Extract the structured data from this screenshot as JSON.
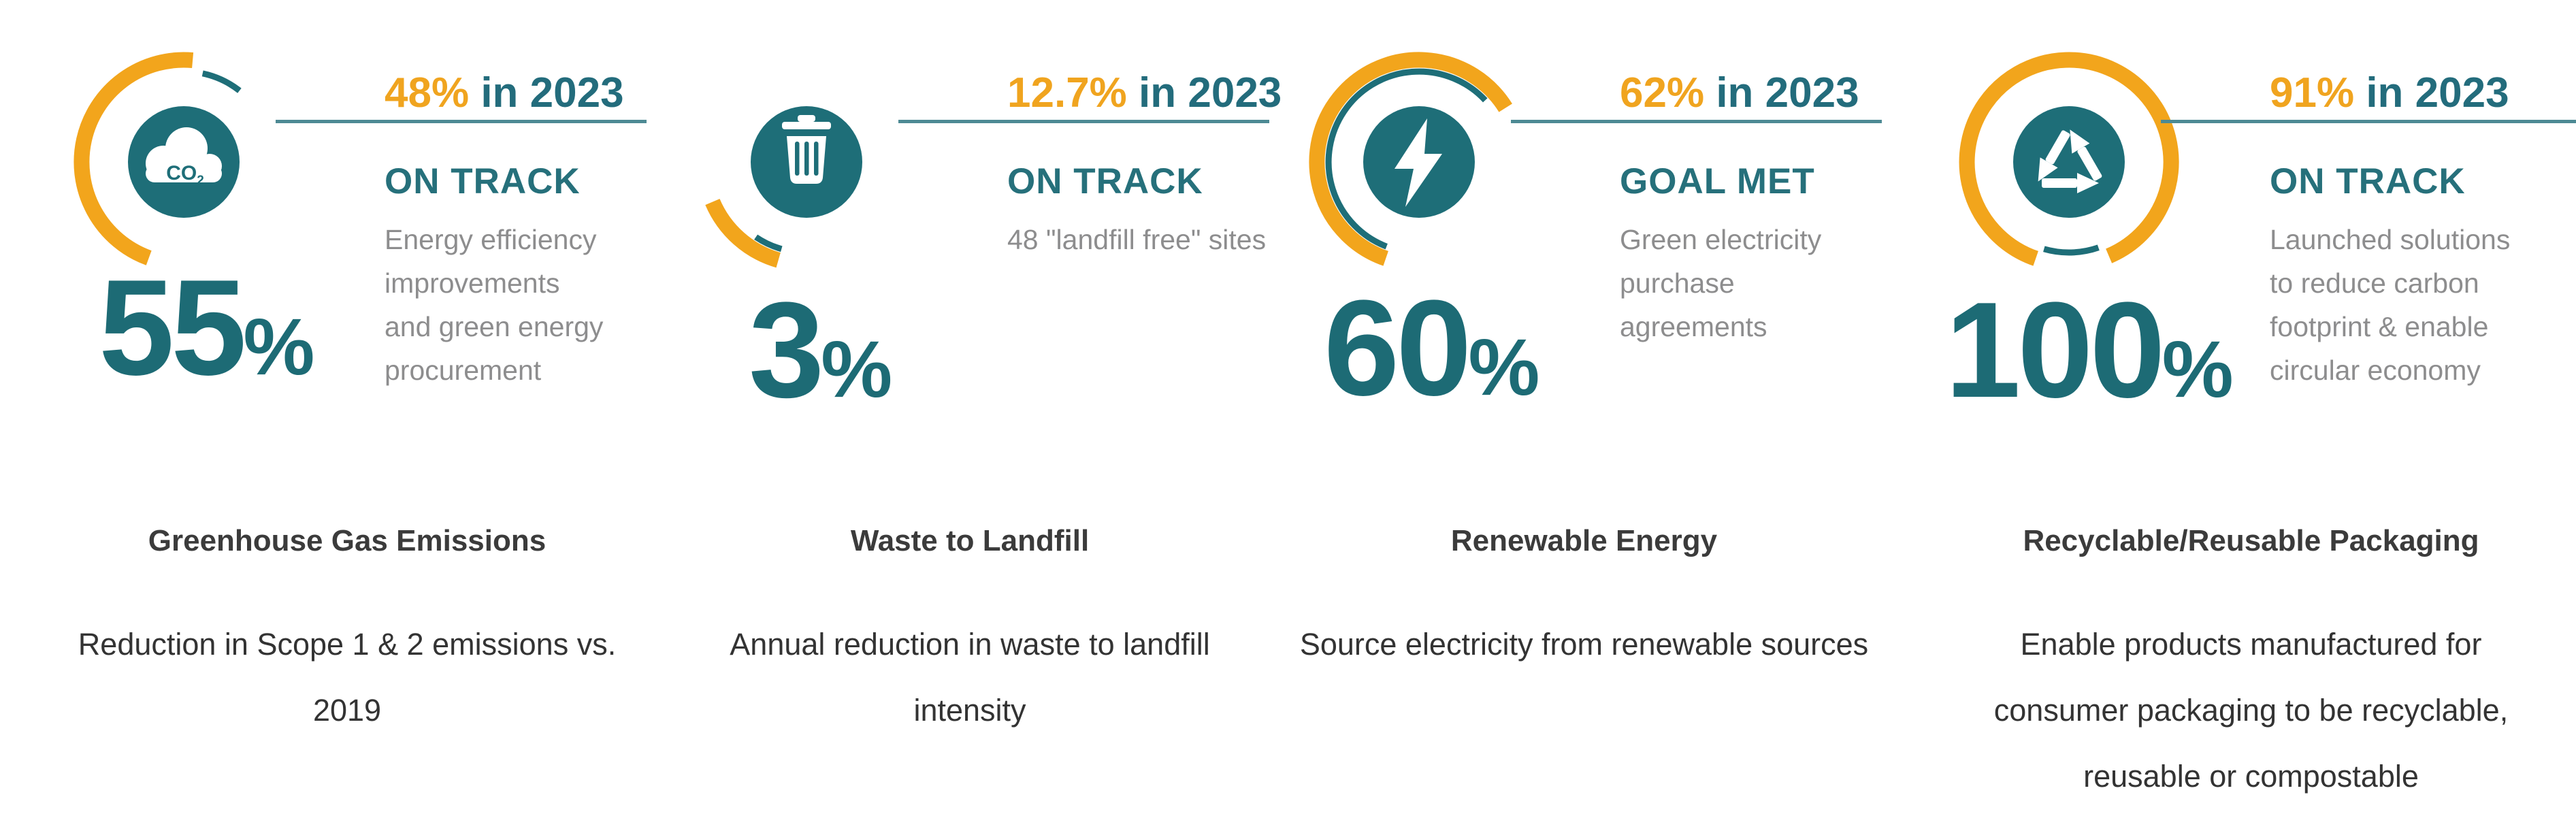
{
  "theme": {
    "background": "#ffffff",
    "accent_orange": "#f2a51c",
    "teal_dark": "#1e6e78",
    "big_number_teal": "#1d6b75",
    "heading_orange": "#f0a41f",
    "heading_teal": "#236c7c",
    "status_teal": "#26707b",
    "divider_teal_gray": "#4d8a94",
    "detail_gray": "#8d8d8e",
    "title_color": "#3b3b3b",
    "description_color": "#333333"
  },
  "icons": {
    "co2_main": "CO",
    "co2_sub": "2"
  },
  "cards": [
    {
      "icon": "co2-cloud-icon",
      "goal_number": "55",
      "goal_suffix": "%",
      "current_value": "48%",
      "current_rest": " in 2023",
      "status": "ON TRACK",
      "detail": "Energy efficiency\nimprovements\nand green energy\nprocurement",
      "title": "Greenhouse Gas Emissions",
      "description": "Reduction in Scope 1 & 2 emissions vs.\n2019",
      "gauge_arcs": {
        "orange_start_deg": 200,
        "orange_end_deg": 365,
        "teal_start_deg": 12,
        "teal_end_deg": 38
      }
    },
    {
      "icon": "trash-icon",
      "goal_number": "3",
      "goal_suffix": "%",
      "current_value": "12.7%",
      "current_rest": " in 2023",
      "status": "ON TRACK",
      "detail": "48 \"landfill free\" sites",
      "title": "Waste to Landfill",
      "description": "Annual reduction in waste to landfill\nintensity",
      "gauge_arcs": {
        "orange_start_deg": 196,
        "orange_end_deg": 247,
        "teal_start_deg": 196,
        "teal_end_deg": 214
      }
    },
    {
      "icon": "lightning-bolt-icon",
      "goal_number": "60",
      "goal_suffix": "%",
      "current_value": "62%",
      "current_rest": " in 2023",
      "status": "GOAL MET",
      "detail": "Green electricity\npurchase\nagreements",
      "title": "Renewable Energy",
      "description": "Source electricity from renewable sources",
      "gauge_arcs": {
        "orange_start_deg": 199,
        "orange_end_deg": 418,
        "teal_start_deg": 201,
        "teal_end_deg": 407
      }
    },
    {
      "icon": "recycle-icon",
      "goal_number": "100",
      "goal_suffix": "%",
      "current_value": "91%",
      "current_rest": " in 2023",
      "status": "ON TRACK",
      "detail": "Launched solutions\nto reduce carbon\nfootprint & enable\ncircular economy",
      "title": "Recyclable/Reusable Packaging",
      "description": "Enable products manufactured for\nconsumer packaging to be recyclable,\nreusable or compostable",
      "gauge_arcs": {
        "orange_start_deg": 199,
        "orange_end_deg": 517,
        "teal_start_deg": 161,
        "teal_end_deg": 196
      }
    }
  ],
  "chart_data": [
    {
      "type": "gauge",
      "title": "Greenhouse Gas Emissions",
      "goal_percent": 55,
      "value_2023_percent": 48,
      "status": "ON TRACK",
      "note": "Energy efficiency improvements and green energy procurement",
      "description": "Reduction in Scope 1 & 2 emissions vs. 2019"
    },
    {
      "type": "gauge",
      "title": "Waste to Landfill",
      "goal_percent": 3,
      "value_2023_percent": 12.7,
      "status": "ON TRACK",
      "note": "48 \"landfill free\" sites",
      "description": "Annual reduction in waste to landfill intensity"
    },
    {
      "type": "gauge",
      "title": "Renewable Energy",
      "goal_percent": 60,
      "value_2023_percent": 62,
      "status": "GOAL MET",
      "note": "Green electricity purchase agreements",
      "description": "Source electricity from renewable sources"
    },
    {
      "type": "gauge",
      "title": "Recyclable/Reusable Packaging",
      "goal_percent": 100,
      "value_2023_percent": 91,
      "status": "ON TRACK",
      "note": "Launched solutions to reduce carbon footprint & enable circular economy",
      "description": "Enable products manufactured for consumer packaging to be recyclable, reusable or compostable"
    }
  ]
}
